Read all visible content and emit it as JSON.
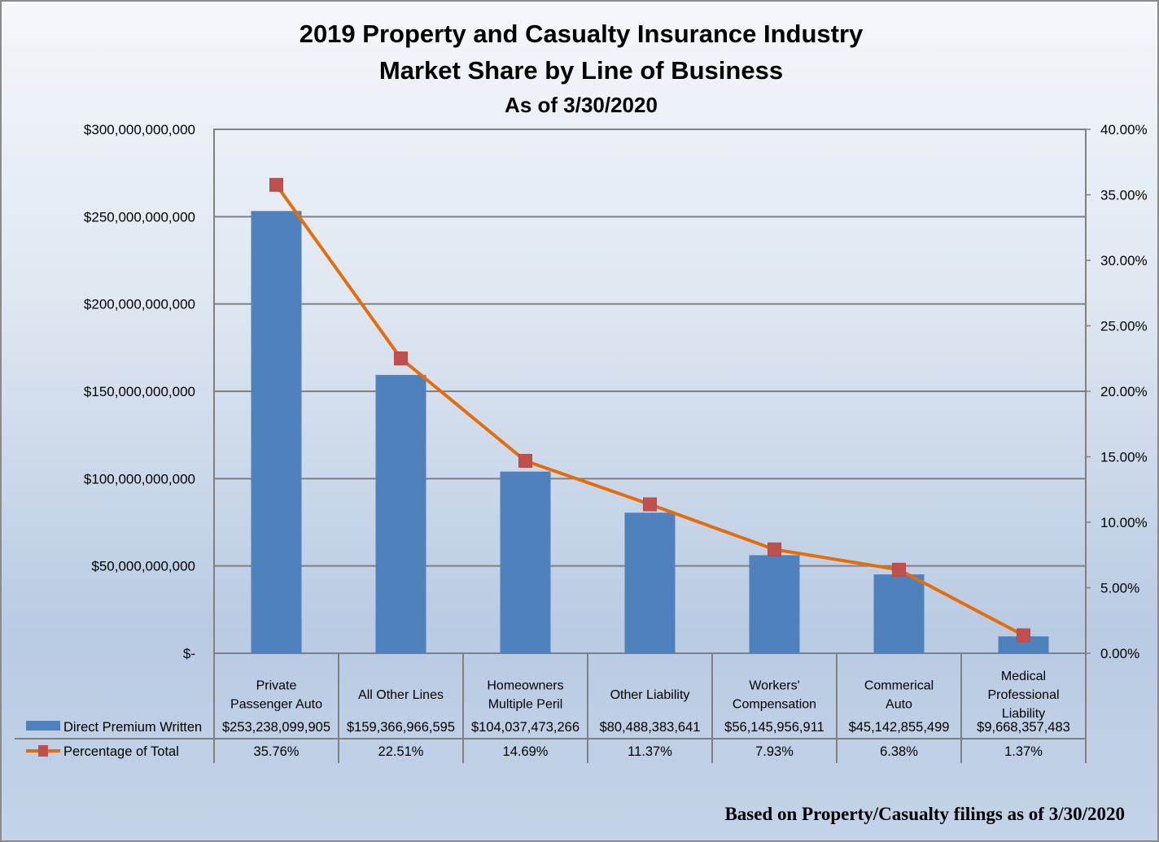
{
  "chart_data": {
    "type": "bar+line",
    "title": "2019 Property and Casualty Insurance Industry",
    "subtitle": "Market Share by Line of Business",
    "subtitle2": "As of 3/30/2020",
    "footer": "Based on Property/Casualty filings as of 3/30/2020",
    "categories": [
      [
        "Private",
        "Passenger Auto"
      ],
      [
        "All Other Lines"
      ],
      [
        "Homeowners",
        "Multiple Peril"
      ],
      [
        "Other Liability"
      ],
      [
        "Workers'",
        "Compensation"
      ],
      [
        "Commerical",
        "Auto"
      ],
      [
        "Medical",
        "Professional",
        "Liability"
      ]
    ],
    "series": [
      {
        "name": "Direct Premium Written",
        "type": "bar",
        "axis": "left",
        "color": "#4f81bd",
        "values": [
          253238099905,
          159366966595,
          104037473266,
          80488383641,
          56145956911,
          45142855499,
          9668357483
        ],
        "labels": [
          "$253,238,099,905",
          "$159,366,966,595",
          "$104,037,473,266",
          "$80,488,383,641",
          "$56,145,956,911",
          "$45,142,855,499",
          "$9,668,357,483"
        ]
      },
      {
        "name": "Percentage of Total",
        "type": "line",
        "axis": "right",
        "color": "#e46c0a",
        "marker_color": "#c0504d",
        "values": [
          35.76,
          22.51,
          14.69,
          11.37,
          7.93,
          6.38,
          1.37
        ],
        "labels": [
          "35.76%",
          "22.51%",
          "14.69%",
          "11.37%",
          "7.93%",
          "6.38%",
          "1.37%"
        ]
      }
    ],
    "y_left": {
      "ylim": [
        0,
        300000000000
      ],
      "ticks": [
        0,
        50000000000,
        100000000000,
        150000000000,
        200000000000,
        250000000000,
        300000000000
      ],
      "tick_labels": [
        "$-",
        "$50,000,000,000",
        "$100,000,000,000",
        "$150,000,000,000",
        "$200,000,000,000",
        "$250,000,000,000",
        "$300,000,000,000"
      ]
    },
    "y_right": {
      "ylim": [
        0,
        40
      ],
      "ticks": [
        0,
        5,
        10,
        15,
        20,
        25,
        30,
        35,
        40
      ],
      "tick_labels": [
        "0.00%",
        "5.00%",
        "10.00%",
        "15.00%",
        "20.00%",
        "25.00%",
        "30.00%",
        "35.00%",
        "40.00%"
      ]
    },
    "grid": true,
    "legend": "data-table-bottom"
  }
}
